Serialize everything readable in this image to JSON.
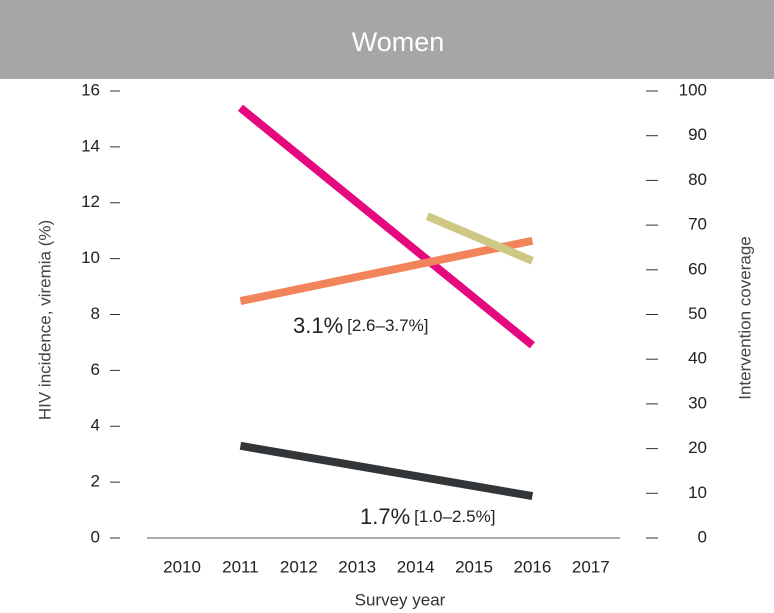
{
  "chart_data": {
    "type": "line",
    "title": "Women",
    "xlabel": "Survey year",
    "ylabel": "HIV incidence, viremia (%)",
    "y2label": "Intervention coverage",
    "xlim": [
      2009.4,
      2017.5
    ],
    "xticks": [
      2010,
      2011,
      2012,
      2013,
      2014,
      2015,
      2016,
      2017
    ],
    "ylim": [
      0,
      16
    ],
    "yticks": [
      0,
      2,
      4,
      6,
      8,
      10,
      12,
      14,
      16
    ],
    "y2lim": [
      0,
      100
    ],
    "y2ticks": [
      0,
      10,
      20,
      30,
      40,
      50,
      60,
      70,
      80,
      90,
      100
    ],
    "series": [
      {
        "color": "#e5087f",
        "x": [
          2011,
          2016
        ],
        "values": [
          15.4,
          6.9
        ]
      },
      {
        "color": "#f2845c",
        "x": [
          2011,
          2016
        ],
        "values": [
          53,
          66.5
        ],
        "axis": "y2"
      },
      {
        "color": "#cdc884",
        "x": [
          2014.2,
          2016
        ],
        "values": [
          72,
          62
        ],
        "axis": "y2"
      },
      {
        "color": "#333638",
        "x": [
          2011,
          2016
        ],
        "values": [
          3.3,
          1.5
        ]
      }
    ],
    "annotations": [
      {
        "text": "3.1%",
        "detail": "[2.6–3.7%]"
      },
      {
        "text": "1.7%",
        "detail": "[1.0–2.5%]"
      }
    ]
  }
}
